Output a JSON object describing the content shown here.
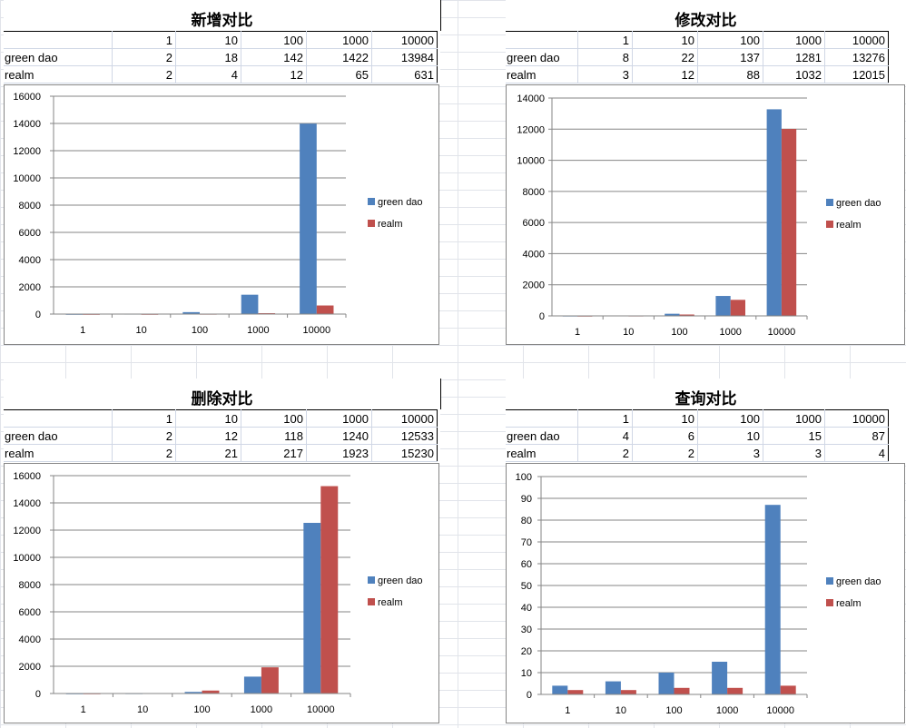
{
  "columns": [
    "1",
    "10",
    "100",
    "1000",
    "10000"
  ],
  "row_labels": [
    "green dao",
    "realm"
  ],
  "colors": {
    "green_dao": "#4f81bd",
    "realm": "#c0504d"
  },
  "chart_data": [
    {
      "type": "bar",
      "title": "新增对比",
      "categories": [
        "1",
        "10",
        "100",
        "1000",
        "10000"
      ],
      "series": [
        {
          "name": "green dao",
          "values": [
            2,
            18,
            142,
            1422,
            13984
          ]
        },
        {
          "name": "realm",
          "values": [
            2,
            4,
            12,
            65,
            631
          ]
        }
      ],
      "ylim": [
        0,
        16000
      ],
      "yticks": [
        "0",
        "2000",
        "4000",
        "6000",
        "8000",
        "10000",
        "12000",
        "14000",
        "16000"
      ],
      "grid": true,
      "legend": "right"
    },
    {
      "type": "bar",
      "title": "修改对比",
      "categories": [
        "1",
        "10",
        "100",
        "1000",
        "10000"
      ],
      "series": [
        {
          "name": "green dao",
          "values": [
            8,
            22,
            137,
            1281,
            13276
          ]
        },
        {
          "name": "realm",
          "values": [
            3,
            12,
            88,
            1032,
            12015
          ]
        }
      ],
      "ylim": [
        0,
        14000
      ],
      "yticks": [
        "0",
        "2000",
        "4000",
        "6000",
        "8000",
        "10000",
        "12000",
        "14000"
      ],
      "grid": true,
      "legend": "right"
    },
    {
      "type": "bar",
      "title": "删除对比",
      "categories": [
        "1",
        "10",
        "100",
        "1000",
        "10000"
      ],
      "series": [
        {
          "name": "green dao",
          "values": [
            2,
            12,
            118,
            1240,
            12533
          ]
        },
        {
          "name": "realm",
          "values": [
            2,
            21,
            217,
            1923,
            15230
          ]
        }
      ],
      "ylim": [
        0,
        16000
      ],
      "yticks": [
        "0",
        "2000",
        "4000",
        "6000",
        "8000",
        "10000",
        "12000",
        "14000",
        "16000"
      ],
      "grid": true,
      "legend": "right"
    },
    {
      "type": "bar",
      "title": "查询对比",
      "categories": [
        "1",
        "10",
        "100",
        "1000",
        "10000"
      ],
      "series": [
        {
          "name": "green dao",
          "values": [
            4,
            6,
            10,
            15,
            87
          ]
        },
        {
          "name": "realm",
          "values": [
            2,
            2,
            3,
            3,
            4
          ]
        }
      ],
      "ylim": [
        0,
        100
      ],
      "yticks": [
        "0",
        "10",
        "20",
        "30",
        "40",
        "50",
        "60",
        "70",
        "80",
        "90",
        "100"
      ],
      "grid": true,
      "legend": "right"
    }
  ]
}
